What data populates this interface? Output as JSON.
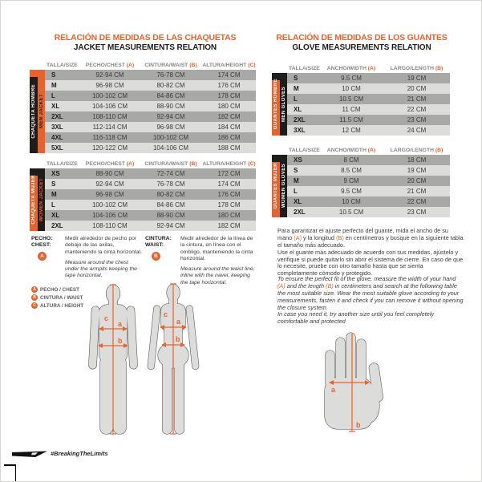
{
  "colors": {
    "orange": "#E8622D",
    "black": "#1d1d1b",
    "row_dark": "#a8a8a7",
    "row_light": "#dcdcdb"
  },
  "left": {
    "title_es": "RELACIÓN DE MEDIDAS DE LAS CHAQUETAS",
    "title_en": "JACKET MEASUREMENTS RELATION",
    "table_headers": {
      "size": "TALLA/SIZE",
      "a": "PECHO/CHEST",
      "a_mark": "(A)",
      "b": "CINTURA/WAIST",
      "b_mark": "(B)",
      "c": "ALTURA/HEIGHT",
      "c_mark": "(C)"
    },
    "tables": {
      "men": {
        "side_outer": "CHAQUETA HOMBRE",
        "side_inner": "MEN JACKET",
        "rows": [
          [
            "S",
            "92-94 CM",
            "76-78 CM",
            "174 CM"
          ],
          [
            "M",
            "96-98 CM",
            "80-82 CM",
            "176 CM"
          ],
          [
            "L",
            "100-102 CM",
            "84-86 CM",
            "178 CM"
          ],
          [
            "XL",
            "104-106 CM",
            "88-90 CM",
            "180 CM"
          ],
          [
            "2XL",
            "108-110 CM",
            "92-94 CM",
            "182 CM"
          ],
          [
            "3XL",
            "112-114 CM",
            "96-98 CM",
            "184 CM"
          ],
          [
            "4XL",
            "116-118 CM",
            "100-102 CM",
            "186 CM"
          ],
          [
            "5XL",
            "120-122 CM",
            "104-106 CM",
            "188 CM"
          ]
        ]
      },
      "women": {
        "side_outer": "CHAQUETA MUJER",
        "side_inner": "WOMEN JACKET",
        "rows": [
          [
            "XS",
            "88-90 CM",
            "72-74 CM",
            "172 CM"
          ],
          [
            "S",
            "92-94 CM",
            "76-78 CM",
            "174 CM"
          ],
          [
            "M",
            "96-98 CM",
            "80-82 CM",
            "176 CM"
          ],
          [
            "L",
            "100-102 CM",
            "84-86 CM",
            "178 CM"
          ],
          [
            "XL",
            "104-106 CM",
            "88-90 CM",
            "180 CM"
          ],
          [
            "2XL",
            "108-110 CM",
            "92-94 CM",
            "182 CM"
          ]
        ]
      }
    },
    "instructions": {
      "chest": {
        "label_es": "PECHO:",
        "label_en": "CHEST:",
        "marker": "A",
        "text_es": "Medir alrededor de pecho por debajo de las axilas, manteniendo la cinta horizontal.",
        "text_en": "Measure around the chest under the armpits keeping the tape horizontal."
      },
      "waist": {
        "label_es": "CINTURA:",
        "label_en": "WAIST:",
        "marker": "B",
        "text_es": "Medir alrededor de la línea de la cintura, en línea con el ombligo, manteniendo la cinta horizontal.",
        "text_en": "Measure around the waist line, inline with the navel, keeping the tape horizontal."
      }
    },
    "legend": [
      {
        "marker": "A",
        "label": "PECHO / CHEST"
      },
      {
        "marker": "B",
        "label": "CINTURA / WAIST"
      },
      {
        "marker": "C",
        "label": "ALTURA / HEIGHT"
      }
    ],
    "figure_labels": {
      "a": "a",
      "b": "b",
      "c": "c"
    }
  },
  "right": {
    "title_es": "RELACIÓN DE MEDIDAS DE LOS GUANTES",
    "title_en": "GLOVE MEASUREMENTS RELATION",
    "table_headers": {
      "size": "TALLA/SIZE",
      "a": "ANCHO/WIDTH",
      "a_mark": "(A)",
      "b": "LARGO/LENGTH",
      "b_mark": "(B)"
    },
    "tables": {
      "men": {
        "side_outer": "GUANTES HOMBRE",
        "side_inner": "MEN GLOVES",
        "rows": [
          [
            "S",
            "9.5 CM",
            "19 CM"
          ],
          [
            "M",
            "10 CM",
            "20 CM"
          ],
          [
            "L",
            "10.5 CM",
            "21 CM"
          ],
          [
            "XL",
            "11 CM",
            "22 CM"
          ],
          [
            "2XL",
            "11.5 CM",
            "23 CM"
          ],
          [
            "3XL",
            "12 CM",
            "24 CM"
          ]
        ]
      },
      "women": {
        "side_outer": "GUANTES MUJER",
        "side_inner": "WOMEN GLOVES",
        "rows": [
          [
            "XS",
            "8 CM",
            "18 CM"
          ],
          [
            "S",
            "8.5 CM",
            "19 CM"
          ],
          [
            "M",
            "9 CM",
            "20 CM"
          ],
          [
            "L",
            "9.5 CM",
            "21 CM"
          ],
          [
            "XL",
            "10 CM",
            "22 CM"
          ],
          [
            "2XL",
            "10.5 CM",
            "23 CM"
          ]
        ]
      }
    },
    "para_es": {
      "p1": "Para garantizar el ajuste perfecto del guante, mida el ancho de su mano ",
      "m1": "(A)",
      "p2": " y la longitud ",
      "m2": "(B)",
      "p3": " en centímetros y busque en la siguiente tabla el tamaño más adecuado.",
      "p4": "Use el guante más adecuado de acuerdo con sus medidas, ajústelo y verifique si puede quitarlo sin abrir el sistema de cierre. En caso de que lo necesite, pruebe con otro tamaño hasta que se sienta completamente cómodo y protegido."
    },
    "para_en": {
      "p1": "To ensure the perfect fit of the glove, measure the width of your hand ",
      "m1": "(A)",
      "p2": " and the length ",
      "m2": "(B)",
      "p3": " in centimeters and search at the following table the most suitable size. Wear the most suitable glove according to your measurements, fasten it and check if you can remove it without opening the closure system.",
      "p4": "In case you need it, try another size until you feel completely comfortable and protected"
    },
    "hand_labels": {
      "a": "a",
      "b": "b"
    }
  },
  "footer": {
    "hashtag": "#BreakingTheLimits"
  }
}
